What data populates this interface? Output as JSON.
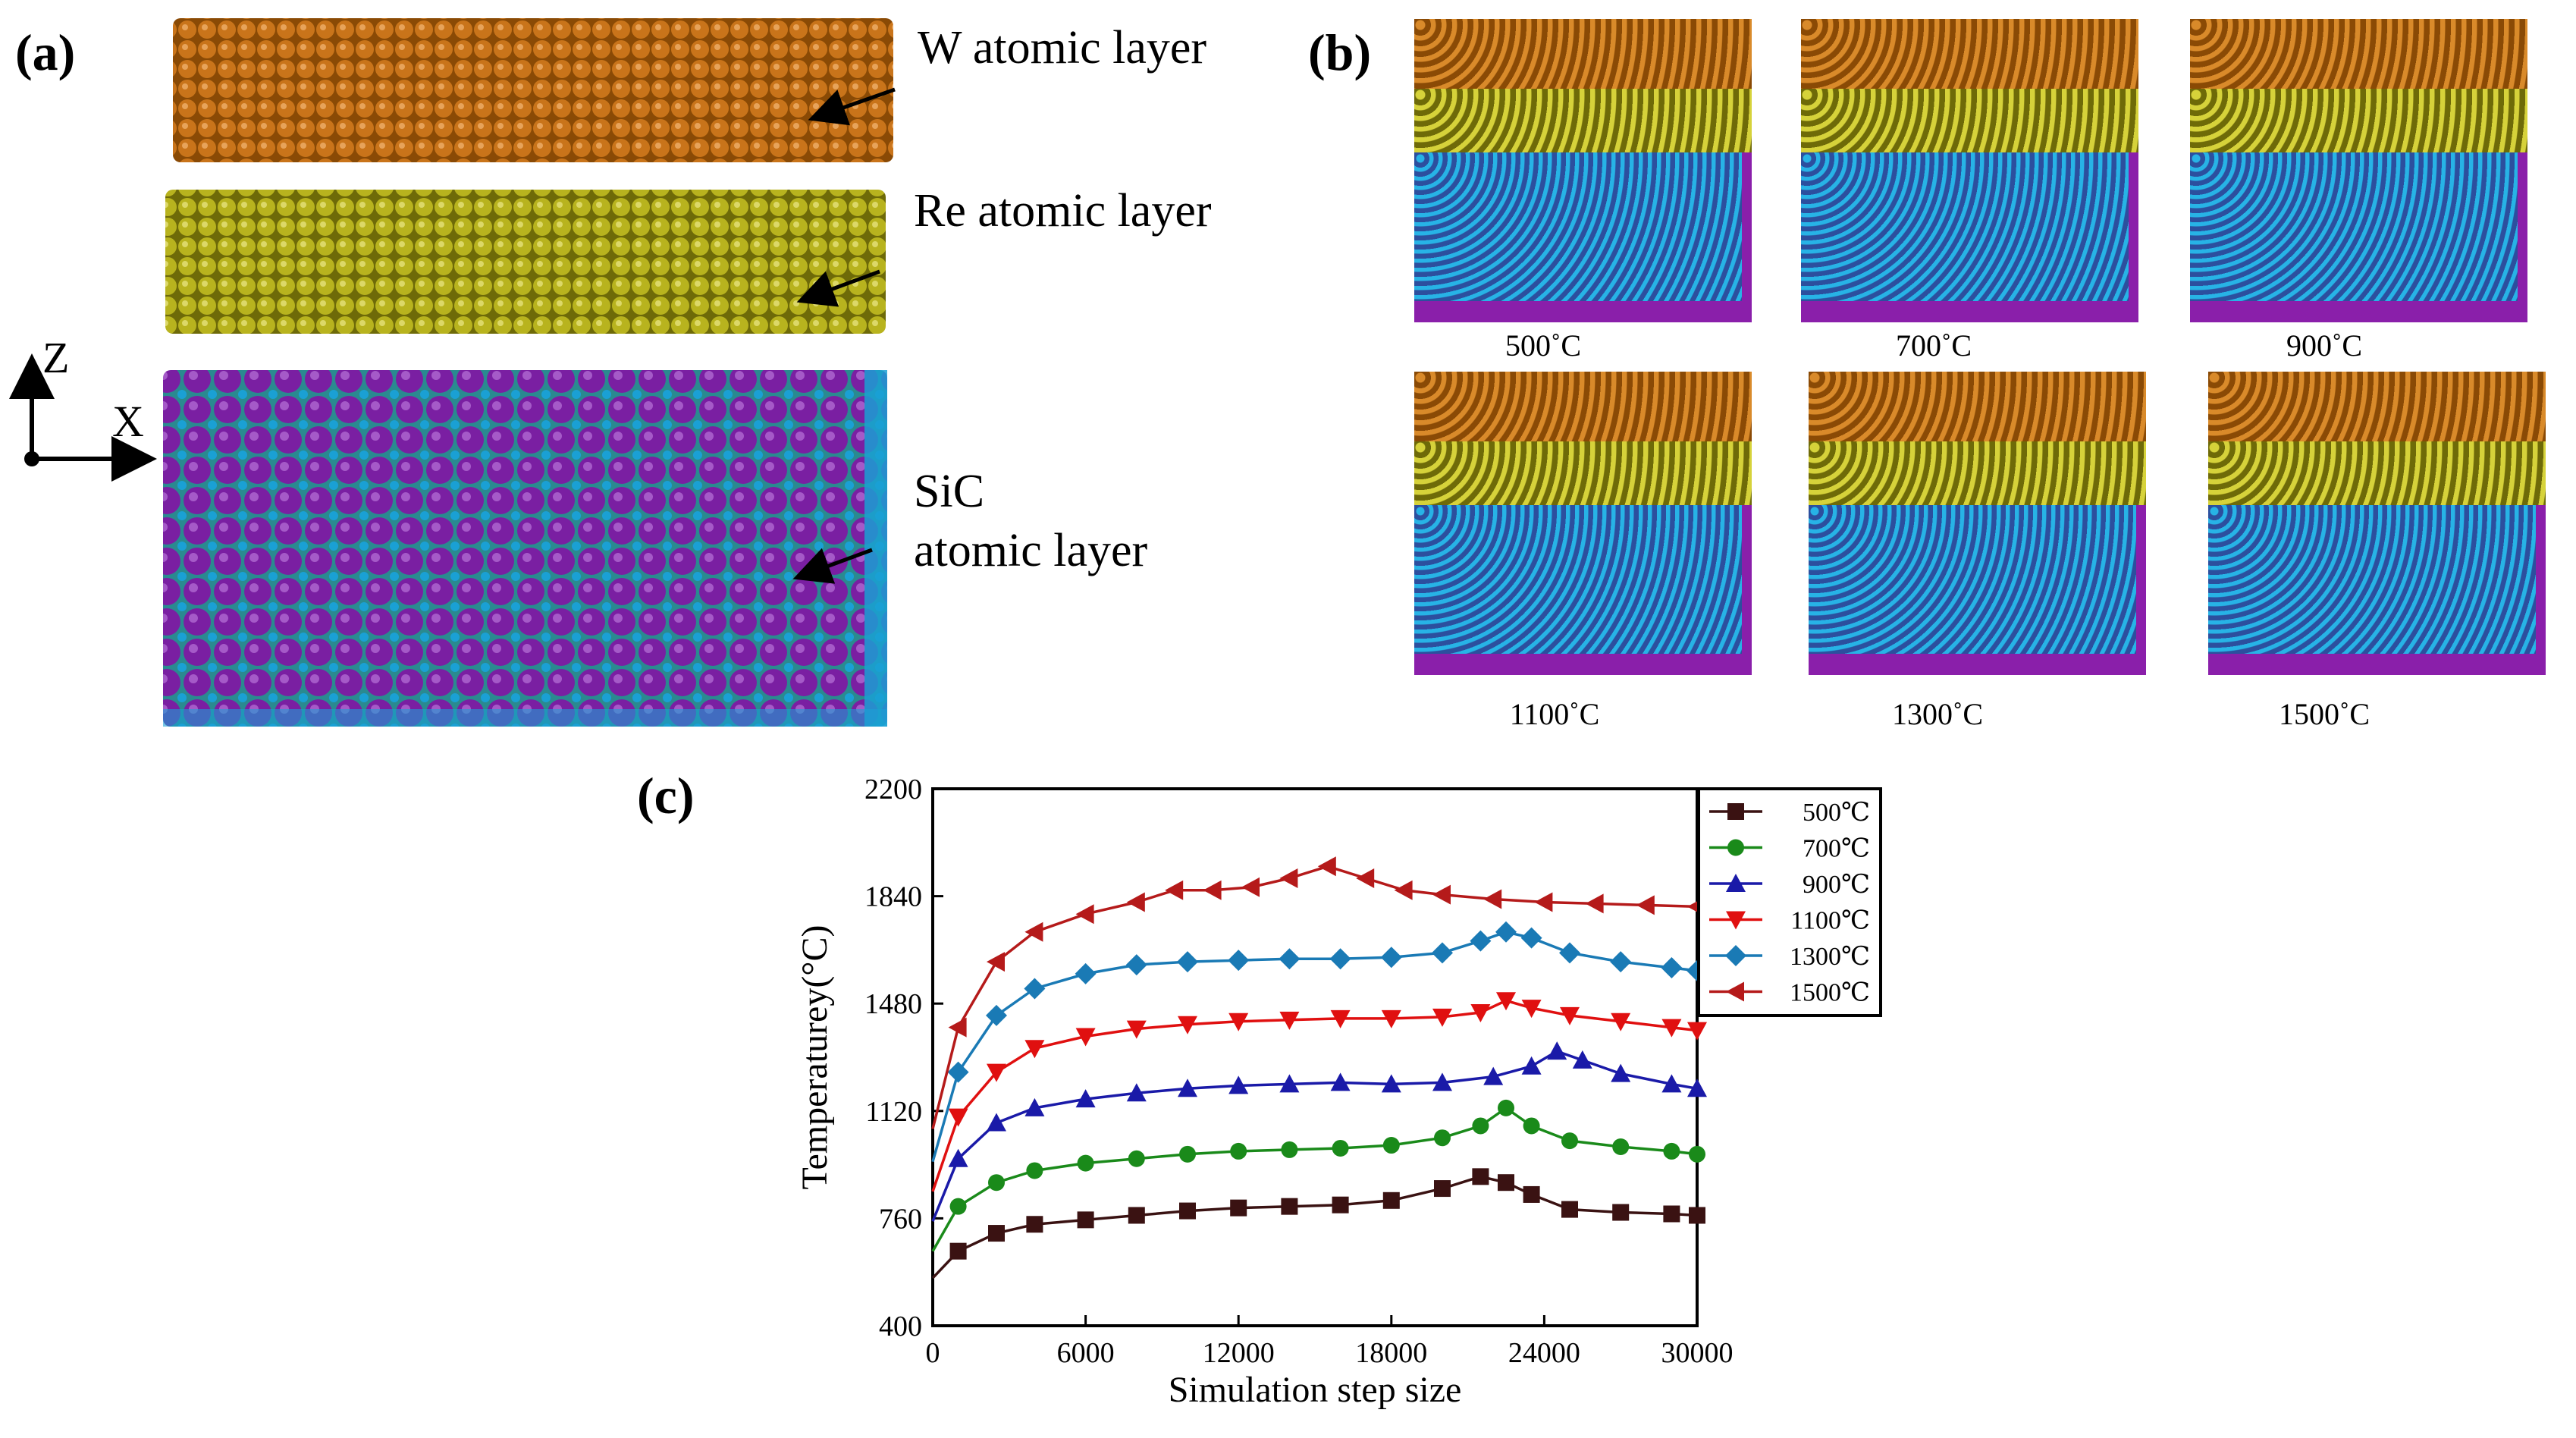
{
  "panel_a": {
    "label": "(a)",
    "layers": [
      "W atomic layer",
      "Re atomic layer",
      "SiC atomic layer"
    ],
    "sic_lines": [
      "SiC",
      "atomic layer"
    ],
    "axis_z": "Z",
    "axis_x": "X",
    "colors": {
      "w": "#c06a0e",
      "re": "#b5b01c",
      "sic_si": "#7a1fa2",
      "sic_c": "#1aa0d4"
    }
  },
  "panel_b": {
    "label": "(b)",
    "temperatures": [
      "500˚C",
      "700˚C",
      "900˚C",
      "1100˚C",
      "1300˚C",
      "1500˚C"
    ]
  },
  "panel_c": {
    "label": "(c)"
  },
  "chart_data": {
    "type": "line",
    "title": "",
    "xlabel": "Simulation step size",
    "ylabel": "Temperaturey(°C)",
    "xlim": [
      0,
      30000
    ],
    "ylim": [
      400,
      2200
    ],
    "xticks": [
      0,
      6000,
      12000,
      18000,
      24000,
      30000
    ],
    "yticks": [
      400,
      760,
      1120,
      1480,
      1840,
      2200
    ],
    "legend_position": "top-right",
    "series": [
      {
        "name": "500℃",
        "color": "#3a1212",
        "marker": "square",
        "x": [
          0,
          1000,
          2500,
          4000,
          6000,
          8000,
          10000,
          12000,
          14000,
          16000,
          18000,
          20000,
          21500,
          22500,
          23500,
          25000,
          27000,
          29000,
          30000
        ],
        "y": [
          560,
          650,
          710,
          740,
          755,
          770,
          785,
          795,
          800,
          805,
          820,
          860,
          900,
          880,
          840,
          790,
          780,
          775,
          770
        ]
      },
      {
        "name": "700℃",
        "color": "#1a8a1a",
        "marker": "circle",
        "x": [
          0,
          1000,
          2500,
          4000,
          6000,
          8000,
          10000,
          12000,
          14000,
          16000,
          18000,
          20000,
          21500,
          22500,
          23500,
          25000,
          27000,
          29000,
          30000
        ],
        "y": [
          650,
          800,
          880,
          920,
          945,
          960,
          975,
          985,
          990,
          995,
          1005,
          1030,
          1070,
          1130,
          1070,
          1020,
          1000,
          985,
          975
        ]
      },
      {
        "name": "900℃",
        "color": "#1a1aa8",
        "marker": "triangle-up",
        "x": [
          0,
          1000,
          2500,
          4000,
          6000,
          8000,
          10000,
          12000,
          14000,
          16000,
          18000,
          20000,
          22000,
          23500,
          24500,
          25500,
          27000,
          29000,
          30000
        ],
        "y": [
          750,
          960,
          1080,
          1130,
          1160,
          1180,
          1195,
          1205,
          1210,
          1215,
          1210,
          1215,
          1235,
          1270,
          1320,
          1290,
          1245,
          1210,
          1195
        ]
      },
      {
        "name": "1100℃",
        "color": "#e01010",
        "marker": "triangle-down",
        "x": [
          0,
          1000,
          2500,
          4000,
          6000,
          8000,
          10000,
          12000,
          14000,
          16000,
          18000,
          20000,
          21500,
          22500,
          23500,
          25000,
          27000,
          29000,
          30000
        ],
        "y": [
          850,
          1100,
          1250,
          1330,
          1370,
          1395,
          1410,
          1420,
          1425,
          1430,
          1430,
          1435,
          1450,
          1490,
          1465,
          1440,
          1420,
          1400,
          1390
        ]
      },
      {
        "name": "1300℃",
        "color": "#1a7ab5",
        "marker": "diamond",
        "x": [
          0,
          1000,
          2500,
          4000,
          6000,
          8000,
          10000,
          12000,
          14000,
          16000,
          18000,
          20000,
          21500,
          22500,
          23500,
          25000,
          27000,
          29000,
          30000
        ],
        "y": [
          950,
          1250,
          1440,
          1530,
          1580,
          1610,
          1620,
          1625,
          1630,
          1630,
          1635,
          1650,
          1690,
          1720,
          1700,
          1650,
          1620,
          1600,
          1590
        ]
      },
      {
        "name": "1500℃",
        "color": "#b51a1a",
        "marker": "triangle-left",
        "x": [
          0,
          1000,
          2500,
          4000,
          6000,
          8000,
          9500,
          11000,
          12500,
          14000,
          15500,
          17000,
          18500,
          20000,
          22000,
          24000,
          26000,
          28000,
          30000
        ],
        "y": [
          1060,
          1400,
          1620,
          1720,
          1780,
          1820,
          1860,
          1860,
          1870,
          1900,
          1940,
          1900,
          1860,
          1845,
          1830,
          1820,
          1815,
          1810,
          1805
        ]
      }
    ]
  }
}
